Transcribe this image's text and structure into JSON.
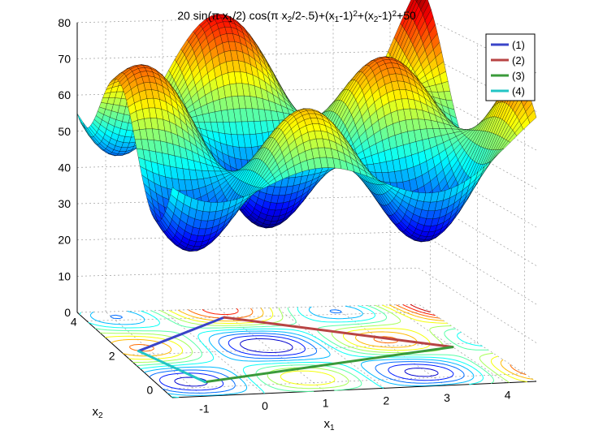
{
  "chart_data": {
    "type": "surface",
    "title": "20 sin(π x1/2) cos(π x2/2-.5)+(x1-1)2+(x2-1)2+50",
    "title_parts": [
      {
        "t": "20 sin(π x",
        "s": "normal"
      },
      {
        "t": "1",
        "s": "sub"
      },
      {
        "t": "/2) cos(π x",
        "s": "normal"
      },
      {
        "t": "2",
        "s": "sub"
      },
      {
        "t": "/2-.5)+(x",
        "s": "normal"
      },
      {
        "t": "1",
        "s": "sub"
      },
      {
        "t": "-1)",
        "s": "normal"
      },
      {
        "t": "2",
        "s": "sup"
      },
      {
        "t": "+(x",
        "s": "normal"
      },
      {
        "t": "2",
        "s": "sub"
      },
      {
        "t": "-1)",
        "s": "normal"
      },
      {
        "t": "2",
        "s": "sup"
      },
      {
        "t": "+50",
        "s": "normal"
      }
    ],
    "xlabel": {
      "base": "x",
      "sub": "1"
    },
    "ylabel": {
      "base": "x",
      "sub": "2"
    },
    "x_ticks": [
      "-1",
      "0",
      "1",
      "2",
      "3",
      "4"
    ],
    "y_ticks": [
      "0",
      "2",
      "4"
    ],
    "z_ticks": [
      "0",
      "10",
      "20",
      "30",
      "40",
      "50",
      "60",
      "70",
      "80"
    ],
    "xlim": [
      -1.5,
      4.5
    ],
    "ylim": [
      -0.5,
      4.5
    ],
    "zlim": [
      0,
      80
    ],
    "grid": true,
    "colormap": "jet",
    "legend_position": "top-right",
    "series": [
      {
        "name": "(1)",
        "color": "#3a44c8",
        "points": [
          [
            -1.2,
            2.2
          ],
          [
            0.9,
            4.0
          ]
        ]
      },
      {
        "name": "(2)",
        "color": "#b84444",
        "points": [
          [
            0.9,
            4.0
          ],
          [
            4.0,
            1.8
          ]
        ]
      },
      {
        "name": "(3)",
        "color": "#3a9a3a",
        "points": [
          [
            -0.7,
            0.3
          ],
          [
            4.0,
            1.8
          ]
        ]
      },
      {
        "name": "(4)",
        "color": "#22c4c4",
        "points": [
          [
            -1.2,
            2.2
          ],
          [
            -0.7,
            0.3
          ]
        ]
      }
    ]
  }
}
